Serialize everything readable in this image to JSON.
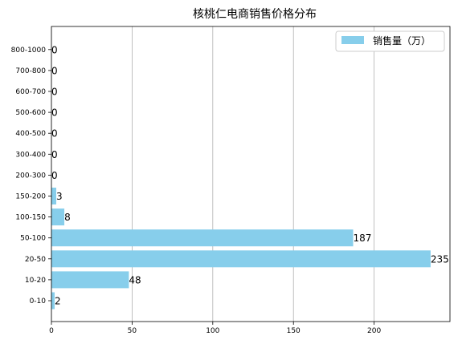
{
  "chart_data": {
    "type": "bar",
    "orientation": "horizontal",
    "title": "核桃仁电商销售价格分布",
    "xlabel": "",
    "ylabel": "",
    "categories": [
      "0-10",
      "10-20",
      "20-50",
      "50-100",
      "100-150",
      "150-200",
      "200-300",
      "300-400",
      "400-500",
      "500-600",
      "600-700",
      "700-800",
      "800-1000"
    ],
    "series": [
      {
        "name": "销售量（万）",
        "values": [
          2,
          48,
          235,
          187,
          8,
          3,
          0,
          0,
          0,
          0,
          0,
          0,
          0
        ]
      }
    ],
    "xticks": [
      0,
      50,
      100,
      150,
      200
    ],
    "xlim": [
      0,
      247
    ],
    "grid": "vertical",
    "legend_position": "top-right",
    "colors": {
      "bar": "#87CEEB",
      "grid": "#b0b0b0",
      "axis": "#000000"
    }
  }
}
